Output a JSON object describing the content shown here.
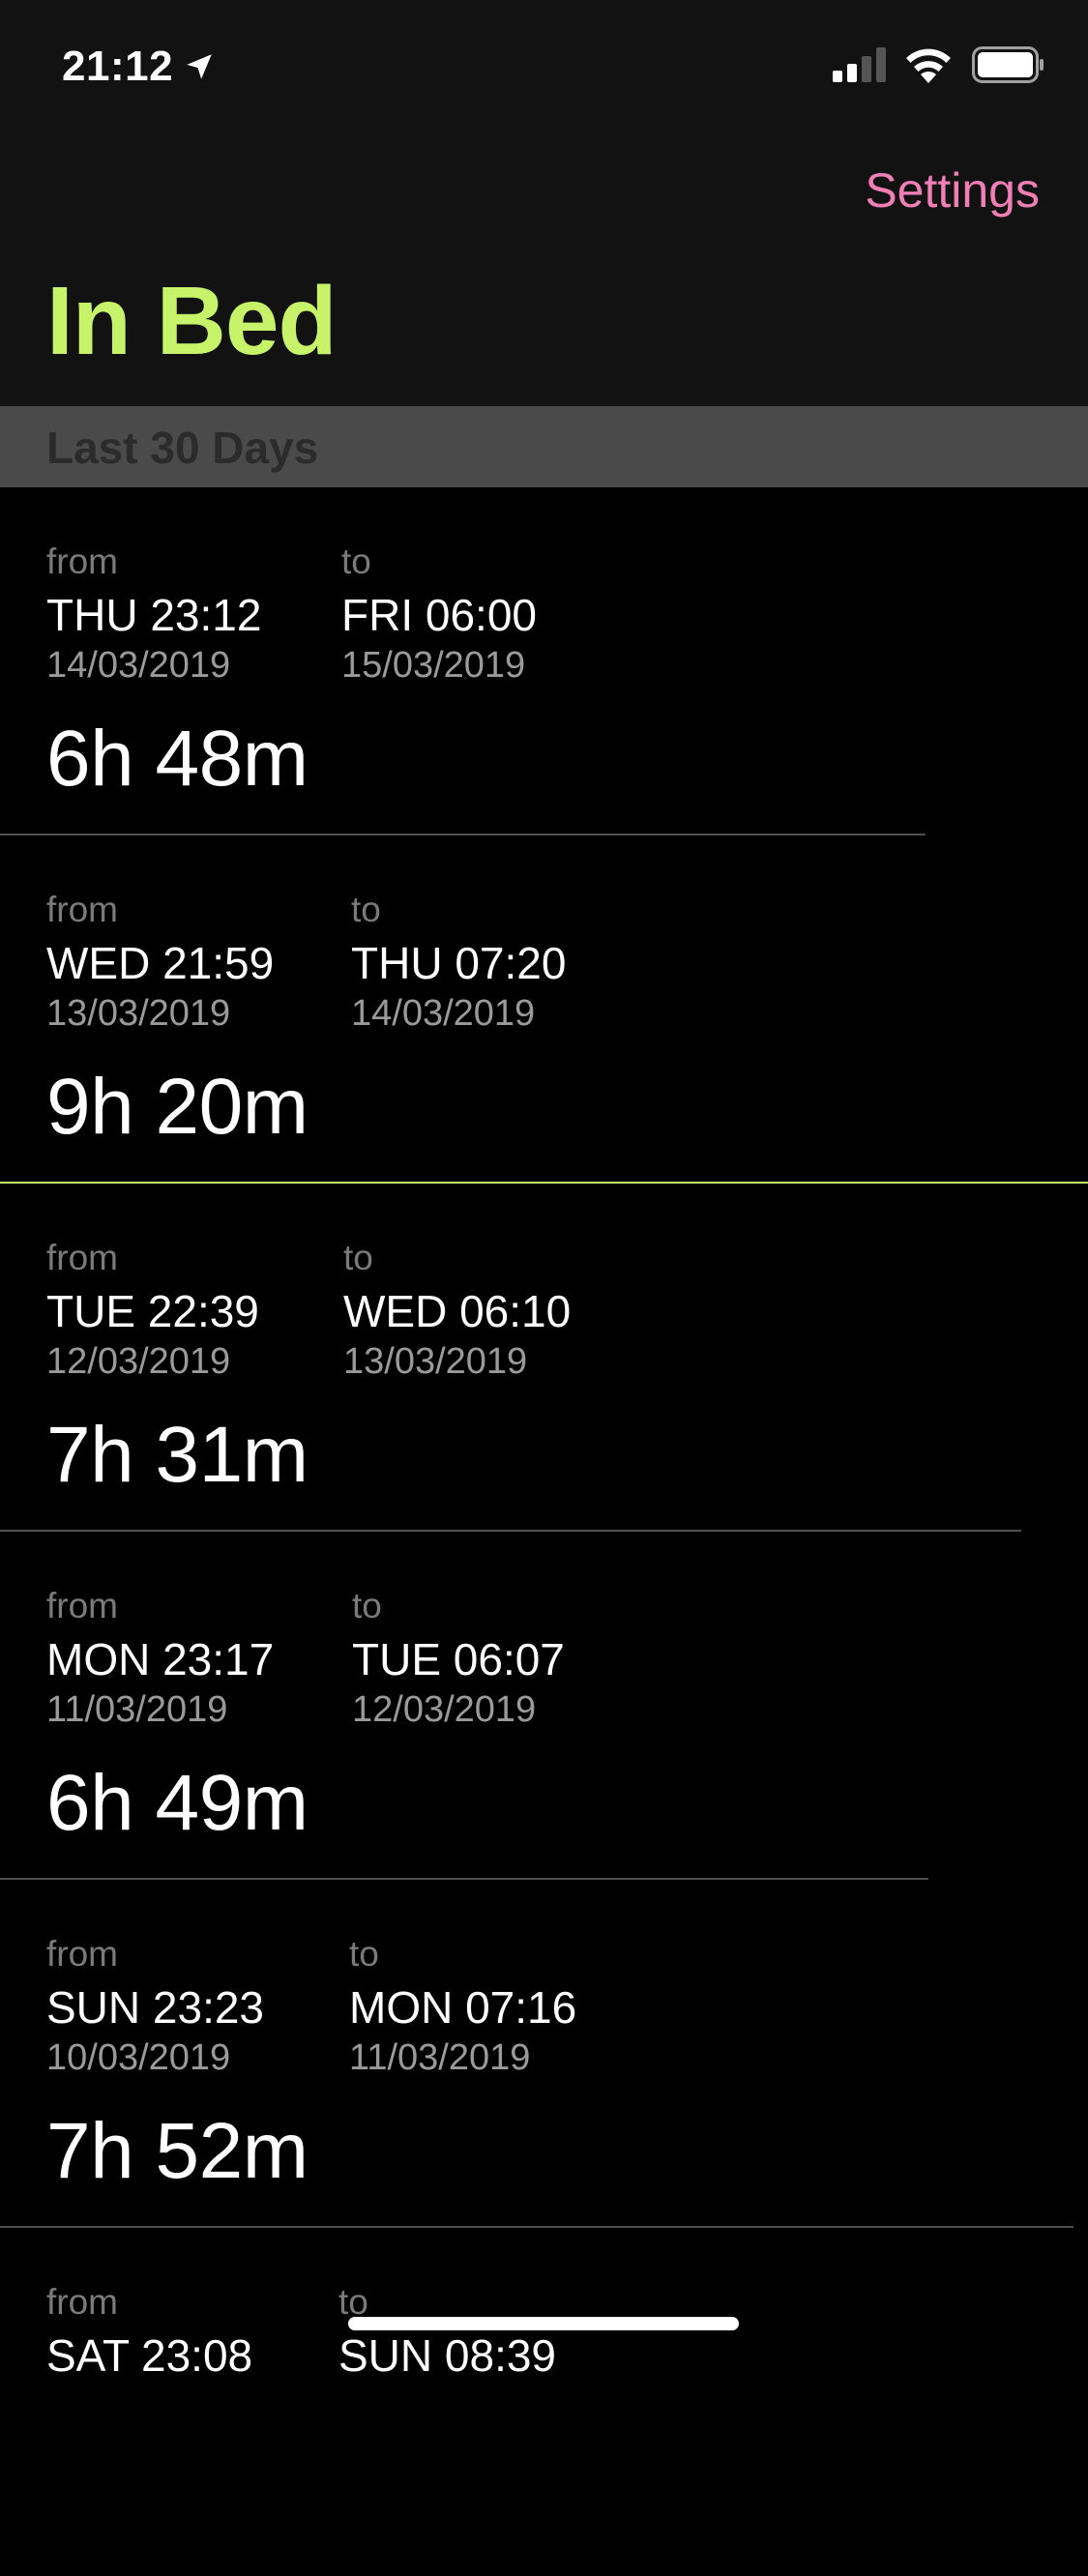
{
  "status_bar": {
    "time": "21:12",
    "icons": [
      "location-arrow-icon",
      "cellular-signal-icon",
      "wifi-icon",
      "battery-icon"
    ]
  },
  "nav": {
    "settings_label": "Settings",
    "title": "In Bed"
  },
  "section": {
    "label": "Last 30 Days"
  },
  "colors": {
    "accent_green": "#c6f36a",
    "accent_pink": "#ef7fb4"
  },
  "entries": [
    {
      "from_label": "from",
      "from": "THU 23:12",
      "from_date": "14/03/2019",
      "to_label": "to",
      "to": "FRI 06:00",
      "to_date": "15/03/2019",
      "duration": "6h 48m"
    },
    {
      "from_label": "from",
      "from": "WED 21:59",
      "from_date": "13/03/2019",
      "to_label": "to",
      "to": "THU 07:20",
      "to_date": "14/03/2019",
      "duration": "9h 20m"
    },
    {
      "from_label": "from",
      "from": "TUE 22:39",
      "from_date": "12/03/2019",
      "to_label": "to",
      "to": "WED 06:10",
      "to_date": "13/03/2019",
      "duration": "7h 31m"
    },
    {
      "from_label": "from",
      "from": "MON 23:17",
      "from_date": "11/03/2019",
      "to_label": "to",
      "to": "TUE 06:07",
      "to_date": "12/03/2019",
      "duration": "6h 49m"
    },
    {
      "from_label": "from",
      "from": "SUN 23:23",
      "from_date": "10/03/2019",
      "to_label": "to",
      "to": "MON 07:16",
      "to_date": "11/03/2019",
      "duration": "7h 52m"
    },
    {
      "from_label": "from",
      "from": "SAT 23:08",
      "from_date": "",
      "to_label": "to",
      "to": "SUN 08:39",
      "to_date": "",
      "duration": ""
    }
  ]
}
